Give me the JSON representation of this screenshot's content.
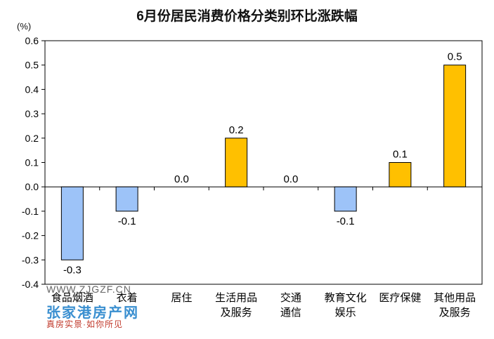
{
  "chart_data": {
    "type": "bar",
    "title": "6月份居民消费价格分类别环比涨跌幅",
    "unit_label": "(%)",
    "ylim": [
      -0.4,
      0.6
    ],
    "ytick_step": 0.1,
    "ytick_labels": [
      "0.6",
      "0.5",
      "0.4",
      "0.3",
      "0.2",
      "0.1",
      "0.0",
      "-0.1",
      "-0.2",
      "-0.3",
      "-0.4"
    ],
    "categories": [
      [
        "食品烟酒"
      ],
      [
        "衣着"
      ],
      [
        "居住"
      ],
      [
        "生活用品",
        "及服务"
      ],
      [
        "交通",
        "通信"
      ],
      [
        "教育文化",
        "娱乐"
      ],
      [
        "医疗保健"
      ],
      [
        "其他用品",
        "及服务"
      ]
    ],
    "values": [
      -0.3,
      -0.1,
      0.0,
      0.2,
      0.0,
      -0.1,
      0.1,
      0.5
    ],
    "value_labels": [
      "-0.3",
      "-0.1",
      "0.0",
      "0.2",
      "0.0",
      "-0.1",
      "0.1",
      "0.5"
    ],
    "colors": {
      "positive": "#FFC000",
      "negative": "#9DC3F8",
      "bar_border": "#000000"
    }
  },
  "watermark": {
    "line1": "WWW.ZJGZF.CN",
    "line2": "张家港房产网",
    "line3": "真房实景·如你所见"
  }
}
